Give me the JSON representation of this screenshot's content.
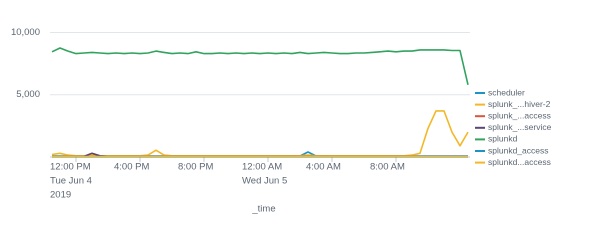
{
  "chart_data": {
    "type": "line",
    "x_axis_label": "_time",
    "x": [
      "2019-06-04T10:30",
      "2019-06-04T11:00",
      "2019-06-04T11:30",
      "2019-06-04T12:00",
      "2019-06-04T12:30",
      "2019-06-04T13:00",
      "2019-06-04T13:30",
      "2019-06-04T14:00",
      "2019-06-04T14:30",
      "2019-06-04T15:00",
      "2019-06-04T15:30",
      "2019-06-04T16:00",
      "2019-06-04T16:30",
      "2019-06-04T17:00",
      "2019-06-04T17:30",
      "2019-06-04T18:00",
      "2019-06-04T18:30",
      "2019-06-04T19:00",
      "2019-06-04T19:30",
      "2019-06-04T20:00",
      "2019-06-04T20:30",
      "2019-06-04T21:00",
      "2019-06-04T21:30",
      "2019-06-04T22:00",
      "2019-06-04T22:30",
      "2019-06-04T23:00",
      "2019-06-04T23:30",
      "2019-06-05T00:00",
      "2019-06-05T00:30",
      "2019-06-05T01:00",
      "2019-06-05T01:30",
      "2019-06-05T02:00",
      "2019-06-05T02:30",
      "2019-06-05T03:00",
      "2019-06-05T03:30",
      "2019-06-05T04:00",
      "2019-06-05T04:30",
      "2019-06-05T05:00",
      "2019-06-05T05:30",
      "2019-06-05T06:00",
      "2019-06-05T06:30",
      "2019-06-05T07:00",
      "2019-06-05T07:30",
      "2019-06-05T08:00",
      "2019-06-05T08:30",
      "2019-06-05T09:00",
      "2019-06-05T09:30",
      "2019-06-05T10:00",
      "2019-06-05T10:30",
      "2019-06-05T11:00",
      "2019-06-05T11:30",
      "2019-06-05T12:00",
      "2019-06-05T12:30"
    ],
    "xlim": [
      "2019-06-04T10:30",
      "2019-06-05T12:30"
    ],
    "xticks": [
      {
        "value": "2019-06-04T12:00",
        "label": "12:00 PM"
      },
      {
        "value": "2019-06-04T16:00",
        "label": "4:00 PM"
      },
      {
        "value": "2019-06-04T20:00",
        "label": "8:00 PM"
      },
      {
        "value": "2019-06-05T00:00",
        "label": "12:00 AM"
      },
      {
        "value": "2019-06-05T04:00",
        "label": "4:00 AM"
      },
      {
        "value": "2019-06-05T08:00",
        "label": "8:00 AM"
      }
    ],
    "xticks_date": [
      {
        "value": "2019-06-04T12:00",
        "label": "Tue Jun 4"
      },
      {
        "value": "2019-06-05T00:00",
        "label": "Wed Jun 5"
      }
    ],
    "xticks_year": [
      {
        "value": "2019-06-04T12:00",
        "label": "2019"
      }
    ],
    "ylim": [
      0,
      11000
    ],
    "yticks": [
      {
        "value": 5000,
        "label": "5,000"
      },
      {
        "value": 10000,
        "label": "10,000"
      }
    ],
    "grid": true,
    "legend": "right",
    "series": [
      {
        "name": "scheduler",
        "color": "#1e93c6",
        "values": [
          80,
          80,
          80,
          80,
          80,
          80,
          80,
          80,
          80,
          80,
          80,
          80,
          80,
          80,
          80,
          80,
          80,
          80,
          80,
          80,
          80,
          80,
          80,
          80,
          80,
          80,
          80,
          80,
          80,
          80,
          80,
          80,
          400,
          80,
          80,
          80,
          80,
          80,
          80,
          80,
          80,
          80,
          80,
          80,
          80,
          80,
          80,
          80,
          80,
          80,
          80,
          80,
          80
        ]
      },
      {
        "name": "splunk_...hiver-2",
        "color": "#f2b827",
        "values": [
          200,
          300,
          150,
          100,
          100,
          150,
          100,
          100,
          100,
          100,
          100,
          100,
          150,
          550,
          150,
          100,
          100,
          100,
          100,
          100,
          100,
          100,
          100,
          100,
          100,
          100,
          100,
          100,
          100,
          100,
          100,
          100,
          150,
          100,
          100,
          100,
          100,
          100,
          100,
          100,
          100,
          100,
          100,
          100,
          100,
          150,
          300,
          2300,
          3700,
          3700,
          2000,
          900,
          2000
        ]
      },
      {
        "name": "splunk_...access",
        "color": "#d6563c",
        "values": [
          30,
          30,
          30,
          30,
          30,
          30,
          30,
          30,
          30,
          30,
          30,
          30,
          30,
          30,
          30,
          30,
          30,
          30,
          30,
          30,
          30,
          30,
          30,
          30,
          30,
          30,
          30,
          30,
          30,
          30,
          30,
          30,
          30,
          30,
          30,
          30,
          30,
          30,
          30,
          30,
          30,
          30,
          30,
          30,
          30,
          30,
          30,
          30,
          30,
          30,
          30,
          30,
          30
        ]
      },
      {
        "name": "splunk_...service",
        "color": "#5a4575",
        "values": [
          50,
          50,
          50,
          50,
          50,
          300,
          100,
          50,
          50,
          50,
          50,
          50,
          50,
          50,
          50,
          50,
          50,
          50,
          50,
          50,
          50,
          50,
          50,
          50,
          50,
          50,
          50,
          50,
          50,
          50,
          50,
          50,
          50,
          50,
          50,
          50,
          50,
          50,
          50,
          50,
          50,
          50,
          50,
          50,
          50,
          50,
          50,
          50,
          50,
          50,
          50,
          50,
          50
        ]
      },
      {
        "name": "splunkd",
        "color": "#31a35f",
        "values": [
          8450,
          8750,
          8500,
          8300,
          8350,
          8400,
          8350,
          8300,
          8350,
          8300,
          8350,
          8300,
          8350,
          8500,
          8400,
          8300,
          8350,
          8300,
          8450,
          8300,
          8300,
          8350,
          8300,
          8350,
          8300,
          8350,
          8300,
          8350,
          8300,
          8350,
          8300,
          8400,
          8300,
          8350,
          8400,
          8350,
          8300,
          8300,
          8350,
          8350,
          8400,
          8450,
          8500,
          8450,
          8500,
          8500,
          8600,
          8600,
          8600,
          8600,
          8550,
          8550,
          5800
        ]
      },
      {
        "name": "splunkd_access",
        "color": "#1e93c6",
        "values": [
          20,
          20,
          20,
          20,
          20,
          20,
          20,
          20,
          20,
          20,
          20,
          20,
          20,
          20,
          20,
          20,
          20,
          20,
          20,
          20,
          20,
          20,
          20,
          20,
          20,
          20,
          20,
          20,
          20,
          20,
          20,
          20,
          20,
          20,
          20,
          20,
          20,
          20,
          20,
          20,
          20,
          20,
          20,
          20,
          20,
          20,
          20,
          20,
          20,
          20,
          20,
          20,
          20
        ]
      },
      {
        "name": "splunkd...access",
        "color": "#f2b827",
        "values": [
          40,
          40,
          40,
          40,
          40,
          40,
          40,
          40,
          40,
          40,
          40,
          40,
          40,
          40,
          40,
          40,
          40,
          40,
          40,
          40,
          40,
          40,
          40,
          40,
          40,
          40,
          40,
          40,
          40,
          40,
          40,
          40,
          40,
          40,
          40,
          40,
          40,
          40,
          40,
          40,
          40,
          40,
          40,
          40,
          40,
          40,
          40,
          40,
          40,
          40,
          40,
          40,
          40
        ]
      }
    ]
  }
}
